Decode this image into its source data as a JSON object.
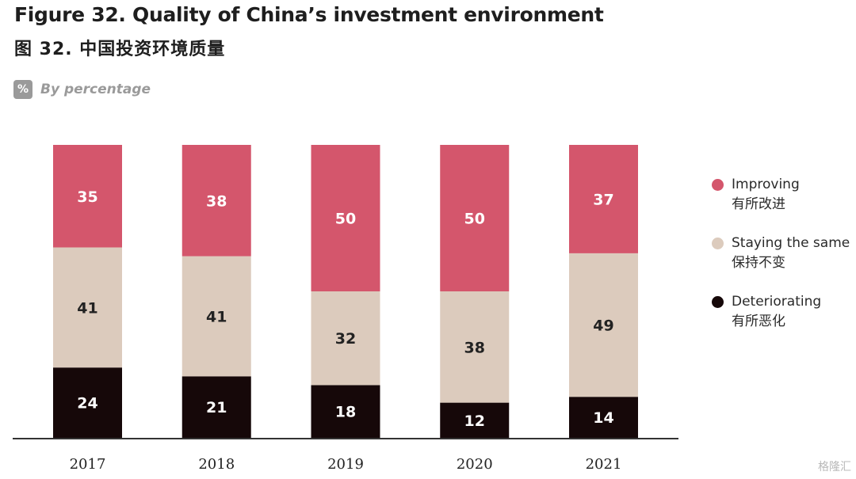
{
  "title": "Figure 32. Quality of China’s investment environment",
  "subtitle": "图 32. 中国投资环境质量",
  "unit_badge": "%",
  "unit_label": "By percentage",
  "watermark": "格隆汇",
  "colors": {
    "improving": "#d4566c",
    "same": "#dccbbd",
    "deteriorating": "#160809",
    "axis": "#333333"
  },
  "chart_data": {
    "type": "bar",
    "stacked": true,
    "categories": [
      "2017",
      "2018",
      "2019",
      "2020",
      "2021"
    ],
    "series": [
      {
        "name": "Improving",
        "name_zh": "有所改进",
        "color": "#d4566c",
        "label_color": "#ffffff",
        "values": [
          35,
          38,
          50,
          50,
          37
        ]
      },
      {
        "name": "Staying the same",
        "name_zh": "保持不变",
        "color": "#dccbbd",
        "label_color": "#222222",
        "values": [
          41,
          41,
          32,
          38,
          49
        ]
      },
      {
        "name": "Deteriorating",
        "name_zh": "有所恶化",
        "color": "#160809",
        "label_color": "#ffffff",
        "values": [
          24,
          21,
          18,
          12,
          14
        ]
      }
    ],
    "ylim": [
      0,
      100
    ],
    "grid": false,
    "legend": "right"
  }
}
